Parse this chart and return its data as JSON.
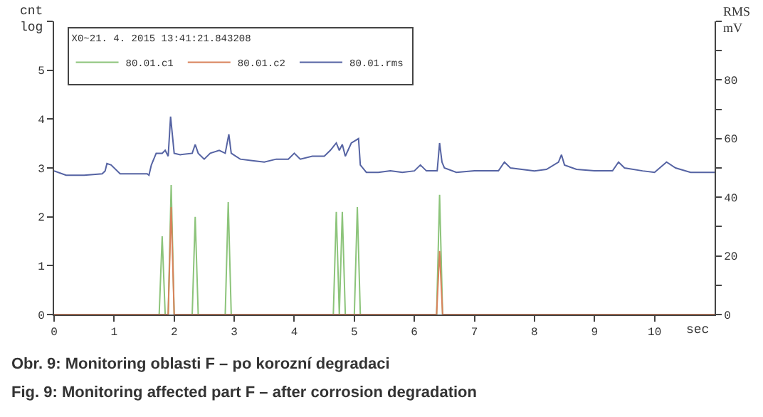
{
  "chart_data": {
    "type": "line",
    "legend_title": "X0~21. 4. 2015 13:41:21.843208",
    "ylabel": "cnt\nlog",
    "y2label": "RMS\nmV",
    "xlabel": "sec",
    "annotations": [
      "Obr. 9: Monitoring oblasti F – po korozní degradaci",
      "Fig. 9: Monitoring affected part F – after corrosion degradation"
    ],
    "xlim": [
      0,
      11
    ],
    "xticks": [
      0,
      1,
      2,
      3,
      4,
      5,
      6,
      7,
      8,
      9,
      10
    ],
    "ylim": [
      0,
      6
    ],
    "yticks": [
      0,
      1,
      2,
      3,
      4,
      5,
      {
        "value": 6,
        "label": null
      }
    ],
    "y2lim": [
      0,
      100
    ],
    "y2ticks": [
      0,
      {
        "value": 10,
        "label": null
      },
      20,
      {
        "value": 30,
        "label": null
      },
      40,
      {
        "value": 50,
        "label": null
      },
      60,
      {
        "value": 70,
        "label": null
      },
      80,
      {
        "value": 90,
        "label": null
      },
      {
        "value": 100,
        "label": null
      }
    ],
    "legend": "top left",
    "marker": "none",
    "line_style": "solid",
    "series": [
      {
        "name": "80.01.c1",
        "color": "#8cc47a",
        "x": [
          0,
          1.75,
          1.8,
          1.85,
          1.9,
          1.95,
          2.0,
          2.3,
          2.35,
          2.4,
          2.85,
          2.9,
          2.95,
          4.65,
          4.7,
          4.75,
          4.8,
          4.85,
          5.0,
          5.05,
          5.1,
          6.37,
          6.42,
          6.47,
          11
        ],
        "values": [
          0,
          0,
          1.6,
          0,
          0,
          2.65,
          0,
          0,
          2.0,
          0,
          0,
          2.3,
          0,
          0,
          2.1,
          0,
          2.1,
          0,
          0,
          2.2,
          0,
          0,
          2.45,
          0,
          0
        ]
      },
      {
        "name": "80.01.c2",
        "color": "#d9825b",
        "x": [
          0,
          1.9,
          1.95,
          2.0,
          6.37,
          6.42,
          6.47,
          11
        ],
        "values": [
          0,
          0,
          2.2,
          0,
          0,
          1.3,
          0,
          0
        ]
      },
      {
        "name": "80.01.rms",
        "color": "#5563a3",
        "axis": "y2",
        "x": [
          0,
          0.2,
          0.5,
          0.8,
          0.85,
          0.88,
          0.95,
          1.1,
          1.3,
          1.55,
          1.58,
          1.62,
          1.7,
          1.8,
          1.85,
          1.9,
          1.94,
          2.0,
          2.1,
          2.3,
          2.35,
          2.4,
          2.5,
          2.6,
          2.75,
          2.85,
          2.91,
          2.95,
          3.1,
          3.3,
          3.5,
          3.7,
          3.9,
          4.0,
          4.1,
          4.3,
          4.5,
          4.6,
          4.7,
          4.75,
          4.8,
          4.85,
          4.95,
          5.07,
          5.1,
          5.2,
          5.4,
          5.6,
          5.8,
          6.0,
          6.1,
          6.2,
          6.38,
          6.42,
          6.46,
          6.5,
          6.7,
          7.0,
          7.4,
          7.5,
          7.6,
          8.0,
          8.2,
          8.4,
          8.45,
          8.5,
          8.7,
          9.0,
          9.3,
          9.4,
          9.5,
          9.8,
          10.0,
          10.2,
          10.35,
          10.6,
          11.0
        ],
        "values": [
          49,
          47.5,
          47.5,
          48,
          49,
          51.5,
          51,
          48,
          48,
          48,
          47.5,
          51,
          55,
          55,
          56,
          54,
          67.5,
          55,
          54.5,
          55,
          58,
          55,
          53,
          55,
          56,
          55,
          61.5,
          55,
          53,
          52.5,
          52,
          53,
          53,
          55,
          53,
          54,
          54,
          56,
          58.5,
          56,
          58,
          54,
          58.5,
          60,
          51,
          48.5,
          48.5,
          49,
          48.5,
          49,
          51,
          49,
          49,
          58.5,
          52,
          50,
          48.5,
          49,
          49,
          52,
          50,
          49,
          49.5,
          52,
          54.5,
          51,
          49.5,
          49,
          49,
          52,
          50,
          49,
          48.5,
          52,
          50,
          48.5,
          48.5
        ]
      }
    ]
  }
}
